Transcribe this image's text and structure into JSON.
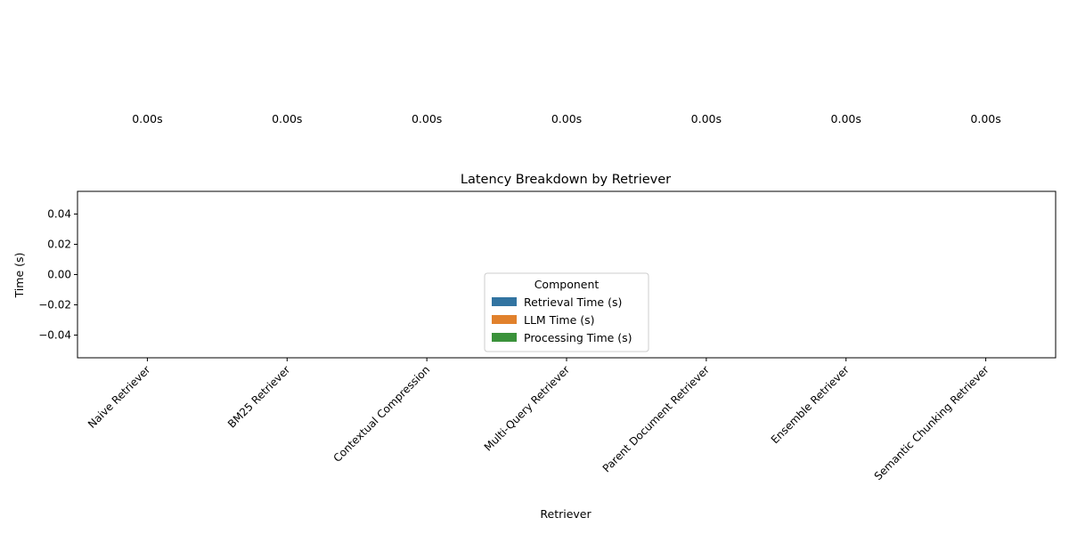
{
  "chart_data": {
    "type": "bar",
    "stacked": true,
    "title": "Latency Breakdown by Retriever",
    "xlabel": "Retriever",
    "ylabel": "Time (s)",
    "ylim": [
      -0.055,
      0.055
    ],
    "yticks": [
      "0.04",
      "0.02",
      "0.00",
      "−0.02",
      "−0.04"
    ],
    "ytick_values": [
      0.04,
      0.02,
      0.0,
      -0.02,
      -0.04
    ],
    "categories": [
      "Naive Retriever",
      "BM25 Retriever",
      "Contextual Compression",
      "Multi-Query Retriever",
      "Parent Document Retriever",
      "Ensemble Retriever",
      "Semantic Chunking Retriever"
    ],
    "series": [
      {
        "name": "Retrieval Time (s)",
        "color": "#3274a1",
        "values": [
          0,
          0,
          0,
          0,
          0,
          0,
          0
        ]
      },
      {
        "name": "LLM Time (s)",
        "color": "#e1812c",
        "values": [
          0,
          0,
          0,
          0,
          0,
          0,
          0
        ]
      },
      {
        "name": "Processing Time (s)",
        "color": "#3a923a",
        "values": [
          0,
          0,
          0,
          0,
          0,
          0,
          0
        ]
      }
    ],
    "total_labels": [
      "0.00s",
      "0.00s",
      "0.00s",
      "0.00s",
      "0.00s",
      "0.00s",
      "0.00s"
    ],
    "legend": {
      "title": "Component",
      "placement": "center"
    },
    "grid": false
  }
}
